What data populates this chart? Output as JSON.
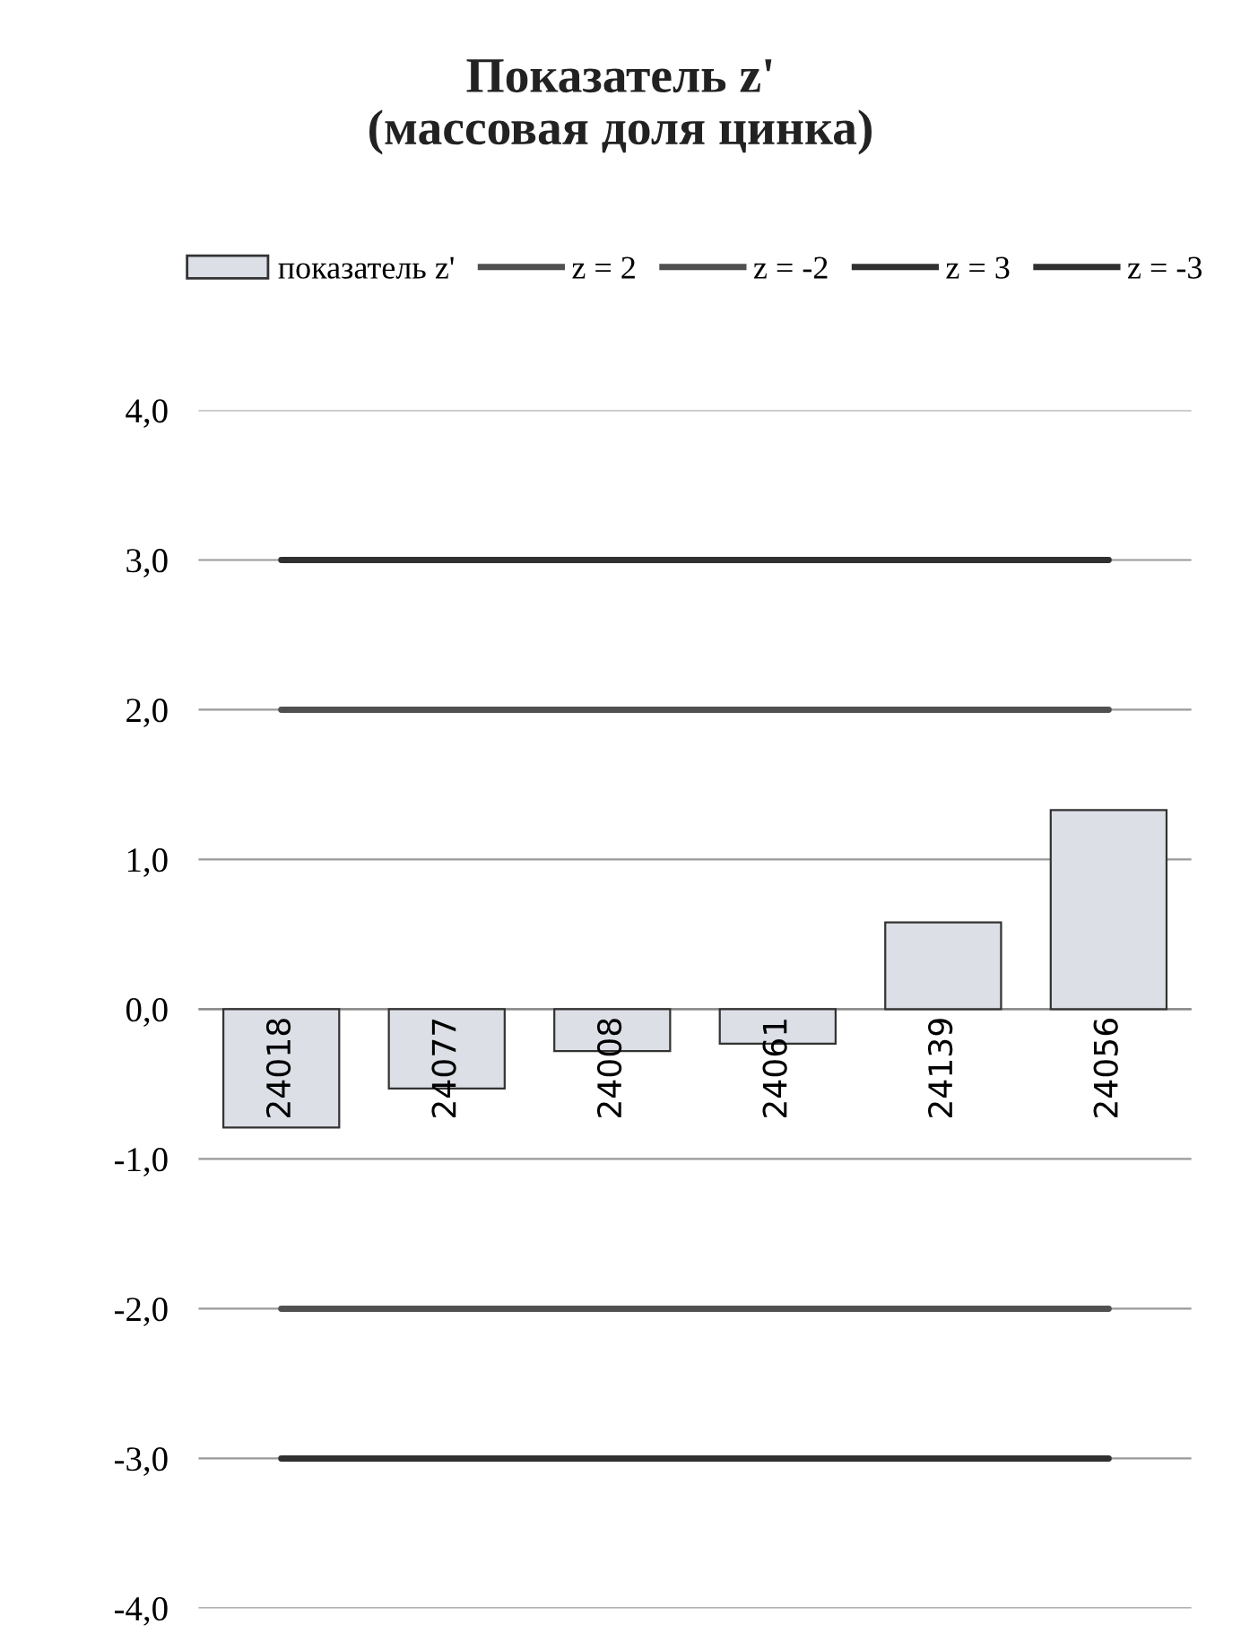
{
  "chart_data": {
    "type": "bar",
    "title": "Показатель z'\n(массовая доля цинка)",
    "categories": [
      "24018",
      "24077",
      "24008",
      "24061",
      "24139",
      "24056"
    ],
    "series": [
      {
        "name": "показатель z'",
        "color": "#dcdfe6",
        "values": [
          -0.79,
          -0.53,
          -0.28,
          -0.23,
          0.58,
          1.33
        ]
      },
      {
        "name": "z = 2",
        "type": "line",
        "color": "#505050",
        "values": [
          2,
          2,
          2,
          2,
          2,
          2
        ]
      },
      {
        "name": "z = -2",
        "type": "line",
        "color": "#505050",
        "values": [
          -2,
          -2,
          -2,
          -2,
          -2,
          -2
        ]
      },
      {
        "name": "z = 3",
        "type": "line",
        "color": "#303030",
        "values": [
          3,
          3,
          3,
          3,
          3,
          3
        ]
      },
      {
        "name": "z = -3",
        "type": "line",
        "color": "#303030",
        "values": [
          -3,
          -3,
          -3,
          -3,
          -3,
          -3
        ]
      }
    ],
    "ylim": [
      -4,
      4
    ],
    "yticks": [
      {
        "value": 4,
        "label": "4,0"
      },
      {
        "value": 3,
        "label": "3,0"
      },
      {
        "value": 2,
        "label": "2,0"
      },
      {
        "value": 1,
        "label": "1,0"
      },
      {
        "value": 0,
        "label": "0,0"
      },
      {
        "value": -1,
        "label": "-1,0"
      },
      {
        "value": -2,
        "label": "-2,0"
      },
      {
        "value": -3,
        "label": "-3,0"
      },
      {
        "value": -4,
        "label": "-4,0"
      }
    ],
    "grid": "y",
    "legend": "top"
  }
}
